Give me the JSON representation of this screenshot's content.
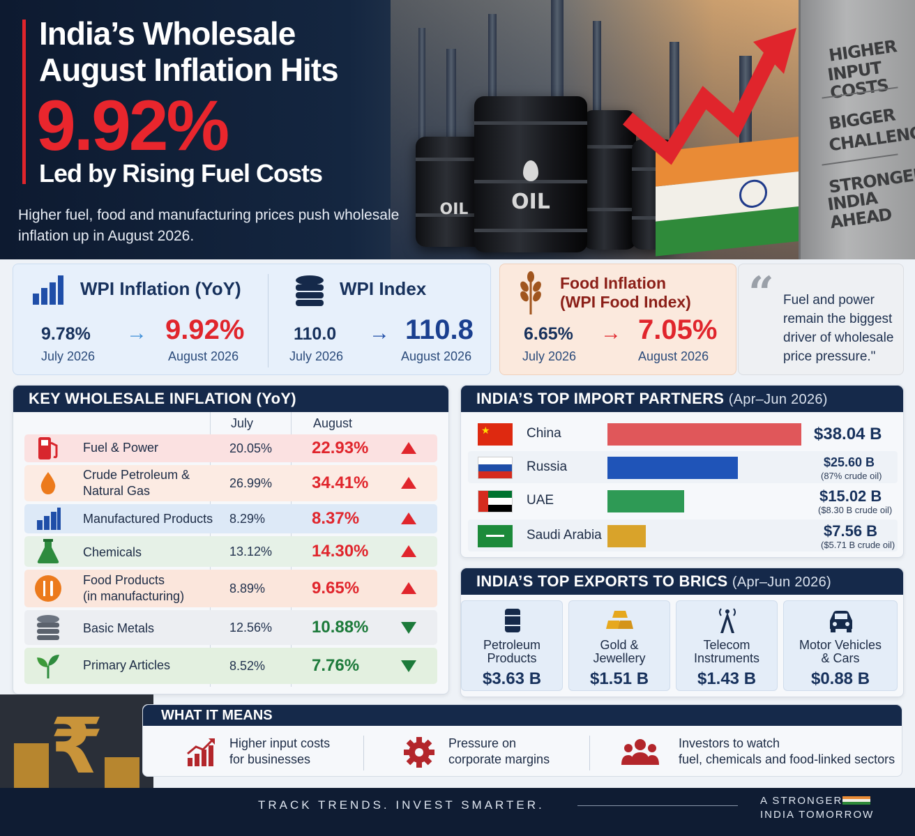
{
  "hero": {
    "title_line1": "India’s Wholesale",
    "title_line2": "August Inflation Hits",
    "headline_value": "9.92%",
    "subtitle": "Led by Rising Fuel Costs",
    "description": "Higher fuel, food and manufacturing prices push wholesale inflation up in August 2026.",
    "barrel_label_main": "OIL",
    "barrel_label_side": "OIL",
    "pillar_lines": [
      "HIGHER",
      "INPUT COSTS",
      "BIGGER",
      "CHALLENGES",
      "STRONGER",
      "INDIA AHEAD"
    ]
  },
  "wpi_inflation": {
    "title": "WPI Inflation (YoY)",
    "july_value": "9.78%",
    "july_label": "July 2026",
    "august_value": "9.92%",
    "august_label": "August 2026"
  },
  "wpi_index": {
    "title": "WPI Index",
    "july_value": "110.0",
    "july_label": "July 2026",
    "august_value": "110.8",
    "august_label": "August 2026"
  },
  "food_inflation": {
    "title_line1": "Food Inflation",
    "title_line2": "(WPI Food Index)",
    "july_value": "6.65%",
    "july_label": "July 2026",
    "august_value": "7.05%",
    "august_label": "August 2026"
  },
  "quote": {
    "text": "Fuel and power remain the biggest driver of wholesale price pressure.\""
  },
  "key_table": {
    "title": "KEY WHOLESALE INFLATION (YoY)",
    "col_july": "July",
    "col_august": "August",
    "rows": [
      {
        "name_line1": "Fuel & Power",
        "name_line2": "",
        "july": "20.05%",
        "august": "22.93%",
        "trend": "up",
        "icon": "fuel-pump-icon"
      },
      {
        "name_line1": "Crude Petroleum &",
        "name_line2": "Natural Gas",
        "july": "26.99%",
        "august": "34.41%",
        "trend": "up",
        "icon": "oil-drop-icon"
      },
      {
        "name_line1": "Manufactured Products",
        "name_line2": "",
        "july": "8.29%",
        "august": "8.37%",
        "trend": "up",
        "icon": "factory-icon"
      },
      {
        "name_line1": "Chemicals",
        "name_line2": "",
        "july": "13.12%",
        "august": "14.30%",
        "trend": "up",
        "icon": "flask-icon"
      },
      {
        "name_line1": "Food Products",
        "name_line2": "(in manufacturing)",
        "july": "8.89%",
        "august": "9.65%",
        "trend": "up",
        "icon": "cutlery-icon"
      },
      {
        "name_line1": "Basic Metals",
        "name_line2": "",
        "july": "12.56%",
        "august": "10.88%",
        "trend": "down",
        "icon": "metal-stack-icon"
      },
      {
        "name_line1": "Primary Articles",
        "name_line2": "",
        "july": "8.52%",
        "august": "7.76%",
        "trend": "down",
        "icon": "leaf-icon"
      }
    ]
  },
  "imports": {
    "title": "INDIA’S TOP IMPORT PARTNERS",
    "period": "(Apr–Jun 2026)",
    "unit": "B",
    "rows": [
      {
        "country": "China",
        "amount": 38.04,
        "value": "$38.04 B",
        "note": "",
        "color": "#e0575a",
        "flag": "china"
      },
      {
        "country": "Russia",
        "amount": 25.6,
        "value": "$25.60 B",
        "note": "(87% crude oil)",
        "color": "#1f54b8",
        "flag": "russia"
      },
      {
        "country": "UAE",
        "amount": 15.02,
        "value": "$15.02 B",
        "note": "($8.30 B crude oil)",
        "color": "#2e9a55",
        "flag": "uae"
      },
      {
        "country": "Saudi Arabia",
        "amount": 7.56,
        "value": "$7.56 B",
        "note": "($5.71 B crude oil)",
        "color": "#d9a32a",
        "flag": "saudi"
      }
    ]
  },
  "exports": {
    "title": "INDIA’S TOP EXPORTS TO BRICS",
    "period": "(Apr–Jun 2026)",
    "items": [
      {
        "line1": "Petroleum",
        "line2": "Products",
        "value": "$3.63 B",
        "icon": "barrel-icon"
      },
      {
        "line1": "Gold &",
        "line2": "Jewellery",
        "value": "$1.51 B",
        "icon": "gold-bars-icon"
      },
      {
        "line1": "Telecom",
        "line2": "Instruments",
        "value": "$1.43 B",
        "icon": "tower-icon"
      },
      {
        "line1": "Motor Vehicles",
        "line2": "& Cars",
        "value": "$0.88 B",
        "icon": "car-icon"
      }
    ]
  },
  "meaning": {
    "title": "WHAT IT MEANS",
    "items": [
      {
        "line1": "Higher input costs",
        "line2": "for businesses"
      },
      {
        "line1": "Pressure on",
        "line2": "corporate margins"
      },
      {
        "line1": "Investors to watch",
        "line2": "fuel, chemicals and food-linked sectors"
      }
    ]
  },
  "footer": {
    "tagline": "TRACK TRENDS. INVEST SMARTER.",
    "slogan_line1": "A STRONGER",
    "slogan_line2": "INDIA TOMORROW"
  },
  "colors": {
    "accent_red": "#e0252c",
    "navy": "#15294a",
    "blue_value": "#1a3f8f",
    "green_down": "#1c7a3a"
  }
}
